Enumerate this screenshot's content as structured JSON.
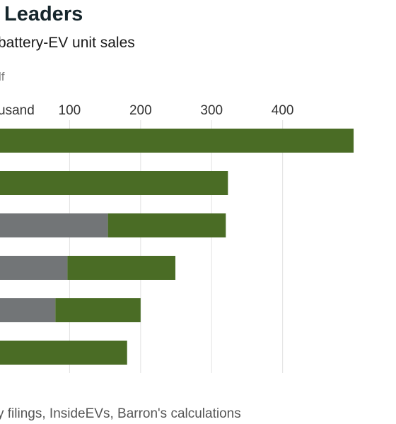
{
  "title_fragment": "Leaders",
  "subtitle_fragment": "battery-EV unit sales",
  "legend_fragment": "lf",
  "source_fragment": "y filings, InsideEVs, Barron's calculations",
  "chart_data": {
    "type": "bar",
    "orientation": "horizontal",
    "stacked": true,
    "unit_label_fragment": "usand",
    "x_ticks": [
      100,
      200,
      300,
      400
    ],
    "xlim": [
      2,
      484
    ],
    "grid": true,
    "categories": [
      "",
      "",
      "",
      "",
      "",
      ""
    ],
    "series": [
      {
        "values": [
          0,
          0,
          154,
          97,
          80,
          0
        ]
      },
      {
        "values": [
          500,
          323,
          166,
          152,
          120,
          181
        ]
      }
    ],
    "colors": [
      "#727577",
      "#4a6c25"
    ],
    "grid_color": "#e2e2e2"
  }
}
